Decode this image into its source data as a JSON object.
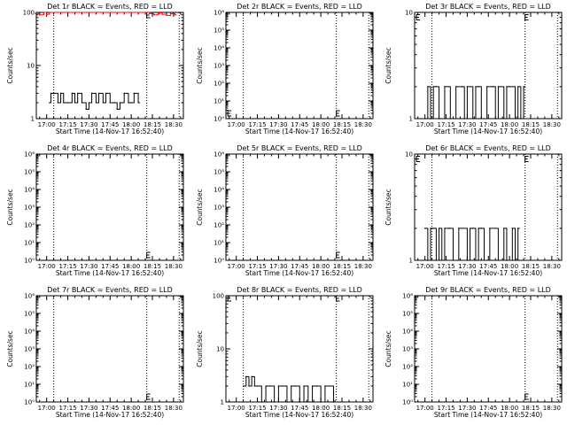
{
  "window": {
    "title": ""
  },
  "chart_data": [
    {
      "type": "line",
      "title": "Det 1r BLACK = Events, RED = LLD",
      "xlabel": "Start Time (14-Nov-17 16:52:40)",
      "ylabel": "Counts/sec",
      "yscale": "log",
      "ylim": [
        1,
        100
      ],
      "yticks": [
        {
          "v": 1,
          "label": "1"
        },
        {
          "v": 10,
          "label": "10"
        },
        {
          "v": 100,
          "label": "100"
        }
      ],
      "xlim": [
        "16:52:40",
        "18:37:00"
      ],
      "xticks": [
        "17:00",
        "17:15",
        "17:30",
        "17:45",
        "18:00",
        "18:15",
        "18:30"
      ],
      "vlines": [
        "17:05",
        "18:11",
        "18:34"
      ],
      "markers": [
        {
          "x": "18:11",
          "y": 95
        }
      ],
      "colors": {
        "events": "#000000",
        "lld": "#ff0000"
      },
      "series": [
        {
          "key": "events",
          "x": [
            "17:02",
            "17:03",
            "17:05",
            "17:08",
            "17:10",
            "17:12",
            "17:15",
            "17:18",
            "17:20",
            "17:22",
            "17:25",
            "17:28",
            "17:30",
            "17:32",
            "17:35",
            "17:37",
            "17:40",
            "17:42",
            "17:45",
            "17:48",
            "17:50",
            "17:52",
            "17:55",
            "17:58",
            "18:00",
            "18:02",
            "18:05"
          ],
          "y": [
            2,
            3,
            3,
            2,
            3,
            2,
            2,
            3,
            2,
            3,
            2,
            1.5,
            2,
            3,
            2,
            3,
            2,
            3,
            2,
            2,
            1.5,
            2,
            3,
            2,
            2,
            3,
            2
          ]
        },
        {
          "key": "lld",
          "x": [
            "16:52",
            "16:55",
            "16:58",
            "17:00",
            "17:02",
            "18:10",
            "18:13",
            "18:16",
            "18:19",
            "18:22",
            "18:25",
            "18:28",
            "18:31"
          ],
          "y": [
            95,
            90,
            100,
            92,
            100,
            100,
            95,
            90,
            98,
            92,
            88,
            95,
            90
          ]
        }
      ]
    },
    {
      "type": "line",
      "title": "Det 2r BLACK = Events, RED = LLD",
      "xlabel": "Start Time (14-Nov-17 16:52:40)",
      "ylabel": "Counts/sec",
      "yscale": "log",
      "ylim": [
        1,
        1000000
      ],
      "yticks": [
        {
          "v": 1,
          "label": "10⁰"
        },
        {
          "v": 10,
          "label": "10¹"
        },
        {
          "v": 100,
          "label": "10²"
        },
        {
          "v": 1000,
          "label": "10³"
        },
        {
          "v": 10000,
          "label": "10⁴"
        },
        {
          "v": 100000,
          "label": "10⁵"
        },
        {
          "v": 1000000,
          "label": "10⁶"
        }
      ],
      "xlim": [
        "16:52:40",
        "18:37:00"
      ],
      "xticks": [
        "17:00",
        "17:15",
        "17:30",
        "17:45",
        "18:00",
        "18:15",
        "18:30"
      ],
      "vlines": [
        "17:05",
        "18:11",
        "18:34"
      ],
      "markers": [
        {
          "x": "16:54",
          "y": 2
        },
        {
          "x": "18:11",
          "y": 2
        }
      ],
      "series": []
    },
    {
      "type": "line",
      "title": "Det 3r BLACK = Events, RED = LLD",
      "xlabel": "Start Time (14-Nov-17 16:52:40)",
      "ylabel": "Counts/sec",
      "yscale": "log",
      "ylim": [
        1,
        10
      ],
      "yticks": [
        {
          "v": 1,
          "label": "1"
        },
        {
          "v": 10,
          "label": "10"
        }
      ],
      "xlim": [
        "16:52:40",
        "18:37:00"
      ],
      "xticks": [
        "17:00",
        "17:15",
        "17:30",
        "17:45",
        "18:00",
        "18:15",
        "18:30"
      ],
      "vlines": [
        "17:05",
        "18:11",
        "18:34"
      ],
      "markers": [
        {
          "x": "16:54",
          "y": 9
        },
        {
          "x": "18:11",
          "y": 9
        }
      ],
      "colors": {
        "events": "#000000"
      },
      "series": [
        {
          "key": "events",
          "x": [
            "17:00",
            "17:02",
            "17:04",
            "17:06",
            "17:08",
            "17:10",
            "17:14",
            "17:18",
            "17:22",
            "17:26",
            "17:28",
            "17:30",
            "17:34",
            "17:36",
            "17:38",
            "17:40",
            "17:44",
            "17:48",
            "17:50",
            "17:52",
            "17:56",
            "17:58",
            "18:00",
            "18:04",
            "18:06",
            "18:08",
            "18:10"
          ],
          "y": [
            1,
            2,
            1,
            2,
            2,
            1,
            2,
            1,
            2,
            2,
            1,
            2,
            1,
            2,
            2,
            1,
            2,
            2,
            1,
            2,
            1,
            2,
            2,
            1,
            2,
            1,
            2
          ]
        }
      ]
    },
    {
      "type": "line",
      "title": "Det 4r BLACK = Events, RED = LLD",
      "xlabel": "Start Time (14-Nov-17 16:52:40)",
      "ylabel": "Counts/sec",
      "yscale": "log",
      "ylim": [
        1,
        1000000
      ],
      "yticks": [
        {
          "v": 1,
          "label": "10⁰"
        },
        {
          "v": 10,
          "label": "10¹"
        },
        {
          "v": 100,
          "label": "10²"
        },
        {
          "v": 1000,
          "label": "10³"
        },
        {
          "v": 10000,
          "label": "10⁴"
        },
        {
          "v": 100000,
          "label": "10⁵"
        },
        {
          "v": 1000000,
          "label": "10⁶"
        }
      ],
      "xlim": [
        "16:52:40",
        "18:37:00"
      ],
      "xticks": [
        "17:00",
        "17:15",
        "17:30",
        "17:45",
        "18:00",
        "18:15",
        "18:30"
      ],
      "vlines": [
        "17:05",
        "18:11",
        "18:34"
      ],
      "markers": [
        {
          "x": "18:11",
          "y": 2
        }
      ],
      "series": []
    },
    {
      "type": "line",
      "title": "Det 5r BLACK = Events, RED = LLD",
      "xlabel": "Start Time (14-Nov-17 16:52:40)",
      "ylabel": "Counts/sec",
      "yscale": "log",
      "ylim": [
        1,
        1000000
      ],
      "yticks": [
        {
          "v": 1,
          "label": "10⁰"
        },
        {
          "v": 10,
          "label": "10¹"
        },
        {
          "v": 100,
          "label": "10²"
        },
        {
          "v": 1000,
          "label": "10³"
        },
        {
          "v": 10000,
          "label": "10⁴"
        },
        {
          "v": 100000,
          "label": "10⁵"
        },
        {
          "v": 1000000,
          "label": "10⁶"
        }
      ],
      "xlim": [
        "16:52:40",
        "18:37:00"
      ],
      "xticks": [
        "17:00",
        "17:15",
        "17:30",
        "17:45",
        "18:00",
        "18:15",
        "18:30"
      ],
      "vlines": [
        "17:05",
        "18:11",
        "18:34"
      ],
      "markers": [
        {
          "x": "18:11",
          "y": 2
        }
      ],
      "series": []
    },
    {
      "type": "line",
      "title": "Det 6r BLACK = Events, RED = LLD",
      "xlabel": "Start Time (14-Nov-17 16:52:40)",
      "ylabel": "Counts/sec",
      "yscale": "log",
      "ylim": [
        1,
        10
      ],
      "yticks": [
        {
          "v": 1,
          "label": "1"
        },
        {
          "v": 10,
          "label": "10"
        }
      ],
      "xlim": [
        "16:52:40",
        "18:37:00"
      ],
      "xticks": [
        "17:00",
        "17:15",
        "17:30",
        "17:45",
        "18:00",
        "18:15",
        "18:30"
      ],
      "vlines": [
        "17:05",
        "18:11",
        "18:34"
      ],
      "markers": [
        {
          "x": "16:54",
          "y": 9
        },
        {
          "x": "18:11",
          "y": 9
        }
      ],
      "colors": {
        "events": "#000000"
      },
      "series": [
        {
          "key": "events",
          "x": [
            "17:00",
            "17:02",
            "17:04",
            "17:06",
            "17:08",
            "17:10",
            "17:12",
            "17:14",
            "17:17",
            "17:20",
            "17:24",
            "17:30",
            "17:32",
            "17:34",
            "17:36",
            "17:38",
            "17:40",
            "17:42",
            "17:46",
            "17:52",
            "17:56",
            "17:58",
            "18:02",
            "18:04",
            "18:06"
          ],
          "y": [
            2,
            1,
            2,
            2,
            1,
            2,
            1,
            2,
            2,
            1,
            2,
            1,
            2,
            2,
            1,
            2,
            2,
            1,
            2,
            1,
            2,
            1,
            2,
            1,
            2
          ]
        }
      ]
    },
    {
      "type": "line",
      "title": "Det 7r BLACK = Events, RED = LLD",
      "xlabel": "Start Time (14-Nov-17 16:52:40)",
      "ylabel": "Counts/sec",
      "yscale": "log",
      "ylim": [
        1,
        1000000
      ],
      "yticks": [
        {
          "v": 1,
          "label": "10⁰"
        },
        {
          "v": 10,
          "label": "10¹"
        },
        {
          "v": 100,
          "label": "10²"
        },
        {
          "v": 1000,
          "label": "10³"
        },
        {
          "v": 10000,
          "label": "10⁴"
        },
        {
          "v": 100000,
          "label": "10⁵"
        },
        {
          "v": 1000000,
          "label": "10⁶"
        }
      ],
      "xlim": [
        "16:52:40",
        "18:37:00"
      ],
      "xticks": [
        "17:00",
        "17:15",
        "17:30",
        "17:45",
        "18:00",
        "18:15",
        "18:30"
      ],
      "vlines": [
        "17:05",
        "18:11",
        "18:34"
      ],
      "markers": [
        {
          "x": "18:11",
          "y": 2
        }
      ],
      "series": []
    },
    {
      "type": "line",
      "title": "Det 8r BLACK = Events, RED = LLD",
      "xlabel": "Start Time (14-Nov-17 16:52:40)",
      "ylabel": "Counts/sec",
      "yscale": "log",
      "ylim": [
        1,
        100
      ],
      "yticks": [
        {
          "v": 1,
          "label": "1"
        },
        {
          "v": 10,
          "label": "10"
        },
        {
          "v": 100,
          "label": "100"
        }
      ],
      "xlim": [
        "16:52:40",
        "18:37:00"
      ],
      "xticks": [
        "17:00",
        "17:15",
        "17:30",
        "17:45",
        "18:00",
        "18:15",
        "18:30"
      ],
      "vlines": [
        "17:05",
        "18:11",
        "18:34"
      ],
      "markers": [
        {
          "x": "16:54",
          "y": 95
        },
        {
          "x": "18:11",
          "y": 95
        }
      ],
      "colors": {
        "events": "#000000"
      },
      "series": [
        {
          "key": "events",
          "x": [
            "17:05",
            "17:07",
            "17:09",
            "17:11",
            "17:13",
            "17:15",
            "17:18",
            "17:21",
            "17:24",
            "17:27",
            "17:30",
            "17:33",
            "17:36",
            "17:39",
            "17:42",
            "17:45",
            "17:48",
            "17:51",
            "17:54",
            "17:57",
            "18:00",
            "18:03",
            "18:06",
            "18:09"
          ],
          "y": [
            2,
            3,
            2,
            3,
            2,
            2,
            1,
            2,
            2,
            1,
            2,
            2,
            1,
            2,
            2,
            1,
            2,
            1,
            2,
            2,
            1,
            2,
            2,
            1
          ]
        }
      ]
    },
    {
      "type": "line",
      "title": "Det 9r BLACK = Events, RED = LLD",
      "xlabel": "Start Time (14-Nov-17 16:52:40)",
      "ylabel": "Counts/sec",
      "yscale": "log",
      "ylim": [
        1,
        1000000
      ],
      "yticks": [
        {
          "v": 1,
          "label": "10⁰"
        },
        {
          "v": 10,
          "label": "10¹"
        },
        {
          "v": 100,
          "label": "10²"
        },
        {
          "v": 1000,
          "label": "10³"
        },
        {
          "v": 10000,
          "label": "10⁴"
        },
        {
          "v": 100000,
          "label": "10⁵"
        },
        {
          "v": 1000000,
          "label": "10⁶"
        }
      ],
      "xlim": [
        "16:52:40",
        "18:37:00"
      ],
      "xticks": [
        "17:00",
        "17:15",
        "17:30",
        "17:45",
        "18:00",
        "18:15",
        "18:30"
      ],
      "vlines": [
        "17:05",
        "18:11",
        "18:34"
      ],
      "markers": [
        {
          "x": "18:11",
          "y": 2
        }
      ],
      "series": []
    }
  ]
}
